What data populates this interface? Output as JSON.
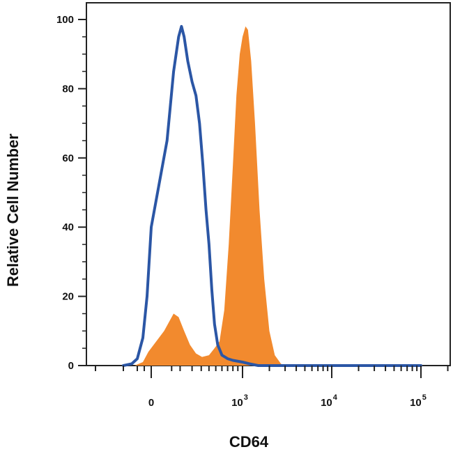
{
  "chart_data": {
    "type": "area",
    "xlabel": "CD64",
    "ylabel": "Relative Cell Number",
    "ylim": [
      0,
      100
    ],
    "x_scale": "biexponential",
    "y_ticks": [
      {
        "value": 0,
        "label": "0"
      },
      {
        "value": 20,
        "label": "20"
      },
      {
        "value": 40,
        "label": "40"
      },
      {
        "value": 60,
        "label": "60"
      },
      {
        "value": 80,
        "label": "80"
      },
      {
        "value": 100,
        "label": "100"
      }
    ],
    "x_ticks": [
      {
        "value": 0,
        "base": "0",
        "exp": ""
      },
      {
        "value": 1000,
        "base": "10",
        "exp": "3"
      },
      {
        "value": 10000,
        "base": "10",
        "exp": "4"
      },
      {
        "value": 100000,
        "base": "10",
        "exp": "5"
      }
    ],
    "series": [
      {
        "style": "filled",
        "color": "#f28a2e",
        "points": [
          [
            -120,
            0
          ],
          [
            -60,
            1
          ],
          [
            -20,
            4
          ],
          [
            20,
            10
          ],
          [
            60,
            15
          ],
          [
            90,
            14
          ],
          [
            130,
            10
          ],
          [
            180,
            6
          ],
          [
            240,
            3.5
          ],
          [
            310,
            2.5
          ],
          [
            400,
            3
          ],
          [
            480,
            5
          ],
          [
            560,
            7
          ],
          [
            640,
            16
          ],
          [
            720,
            35
          ],
          [
            800,
            58
          ],
          [
            870,
            78
          ],
          [
            940,
            90
          ],
          [
            1000,
            95
          ],
          [
            1080,
            98
          ],
          [
            1150,
            97
          ],
          [
            1250,
            88
          ],
          [
            1380,
            70
          ],
          [
            1550,
            45
          ],
          [
            1750,
            25
          ],
          [
            2000,
            10
          ],
          [
            2300,
            3
          ],
          [
            2700,
            0.5
          ],
          [
            3000,
            0
          ]
        ]
      },
      {
        "style": "line",
        "color": "#2b56a5",
        "points": [
          [
            -200,
            0
          ],
          [
            -140,
            0.5
          ],
          [
            -100,
            2
          ],
          [
            -60,
            8
          ],
          [
            -30,
            20
          ],
          [
            0,
            40
          ],
          [
            30,
            65
          ],
          [
            60,
            85
          ],
          [
            90,
            95
          ],
          [
            110,
            98
          ],
          [
            130,
            95
          ],
          [
            160,
            88
          ],
          [
            200,
            82
          ],
          [
            240,
            78
          ],
          [
            280,
            70
          ],
          [
            320,
            58
          ],
          [
            360,
            45
          ],
          [
            400,
            35
          ],
          [
            440,
            22
          ],
          [
            480,
            12
          ],
          [
            530,
            6
          ],
          [
            600,
            3
          ],
          [
            700,
            2
          ],
          [
            800,
            1.5
          ],
          [
            1000,
            1
          ],
          [
            1200,
            0.5
          ],
          [
            1500,
            0
          ],
          [
            100000,
            0
          ]
        ]
      }
    ]
  }
}
